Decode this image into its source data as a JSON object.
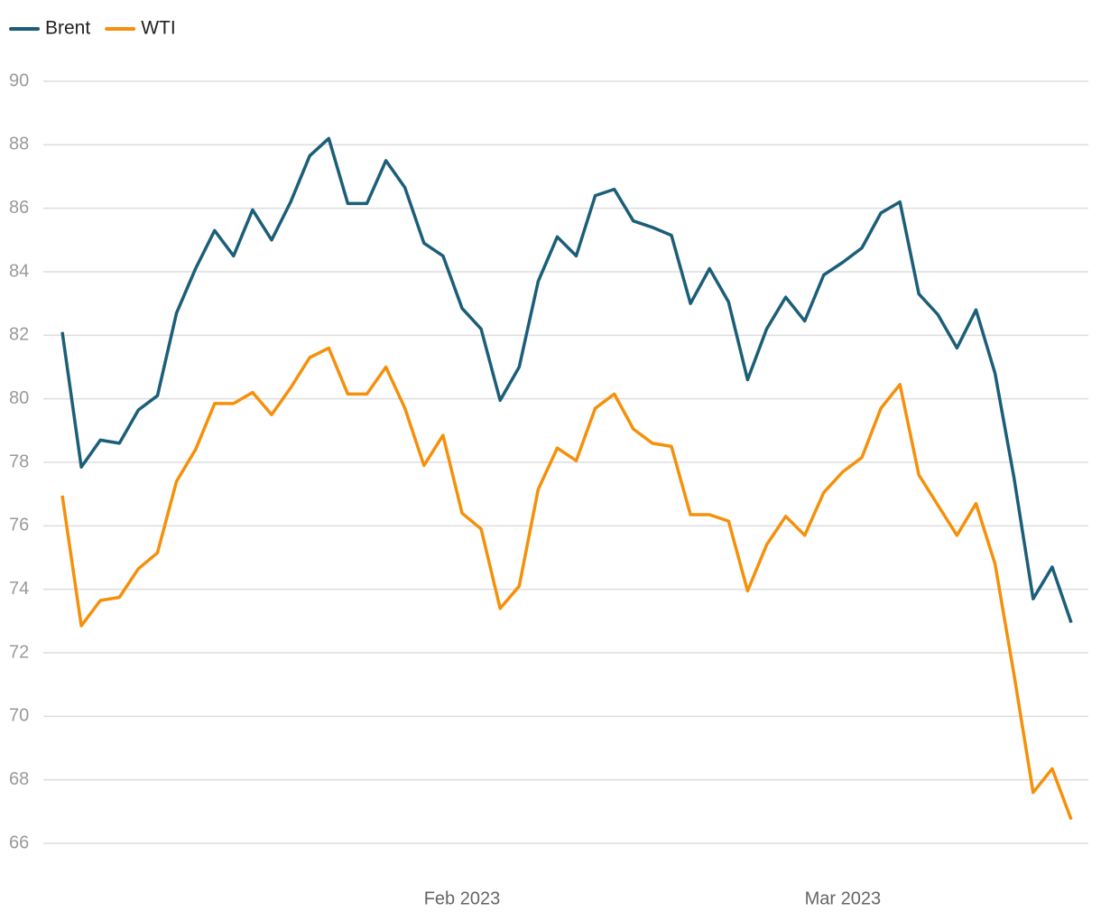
{
  "chart_data": {
    "type": "line",
    "categories": [
      null,
      null,
      null,
      null,
      null,
      null,
      null,
      null,
      null,
      null,
      null,
      null,
      null,
      null,
      null,
      null,
      null,
      null,
      null,
      null,
      null,
      "Feb 2023",
      null,
      null,
      null,
      null,
      null,
      null,
      null,
      null,
      null,
      null,
      null,
      null,
      null,
      null,
      null,
      null,
      null,
      null,
      null,
      "Mar 2023",
      null,
      null,
      null,
      null,
      null,
      null,
      null,
      null,
      null,
      null,
      null,
      null
    ],
    "series": [
      {
        "name": "Brent",
        "color": "#1b5e78",
        "values": [
          82.1,
          77.85,
          78.7,
          78.6,
          79.65,
          80.1,
          82.7,
          84.1,
          85.3,
          84.5,
          85.95,
          85.0,
          86.2,
          87.65,
          88.2,
          86.15,
          86.15,
          87.5,
          86.65,
          84.9,
          84.5,
          82.85,
          82.2,
          79.95,
          81.0,
          83.7,
          85.1,
          84.5,
          86.4,
          86.6,
          85.6,
          85.4,
          85.15,
          83.0,
          84.1,
          83.05,
          80.6,
          82.2,
          83.2,
          82.45,
          83.9,
          84.3,
          84.75,
          85.85,
          86.2,
          83.3,
          82.65,
          81.6,
          82.8,
          80.8,
          77.5,
          73.7,
          74.7,
          72.95
        ]
      },
      {
        "name": "WTI",
        "color": "#f5900a",
        "values": [
          76.95,
          72.85,
          73.65,
          73.75,
          74.65,
          75.15,
          77.4,
          78.4,
          79.85,
          79.85,
          80.2,
          79.5,
          80.35,
          81.3,
          81.6,
          80.15,
          80.15,
          81.0,
          79.7,
          77.9,
          78.85,
          76.4,
          75.9,
          73.4,
          74.1,
          77.15,
          78.45,
          78.05,
          79.7,
          80.15,
          79.05,
          78.6,
          78.5,
          76.35,
          76.35,
          76.15,
          73.95,
          75.4,
          76.3,
          75.7,
          77.05,
          77.7,
          78.15,
          79.7,
          80.45,
          77.6,
          76.65,
          75.7,
          76.7,
          74.8,
          71.3,
          67.6,
          68.35,
          66.75
        ]
      }
    ],
    "ylim": [
      66,
      90
    ],
    "yticks": [
      66,
      68,
      70,
      72,
      74,
      76,
      78,
      80,
      82,
      84,
      86,
      88,
      90
    ],
    "grid": true,
    "legend": "top-left"
  }
}
